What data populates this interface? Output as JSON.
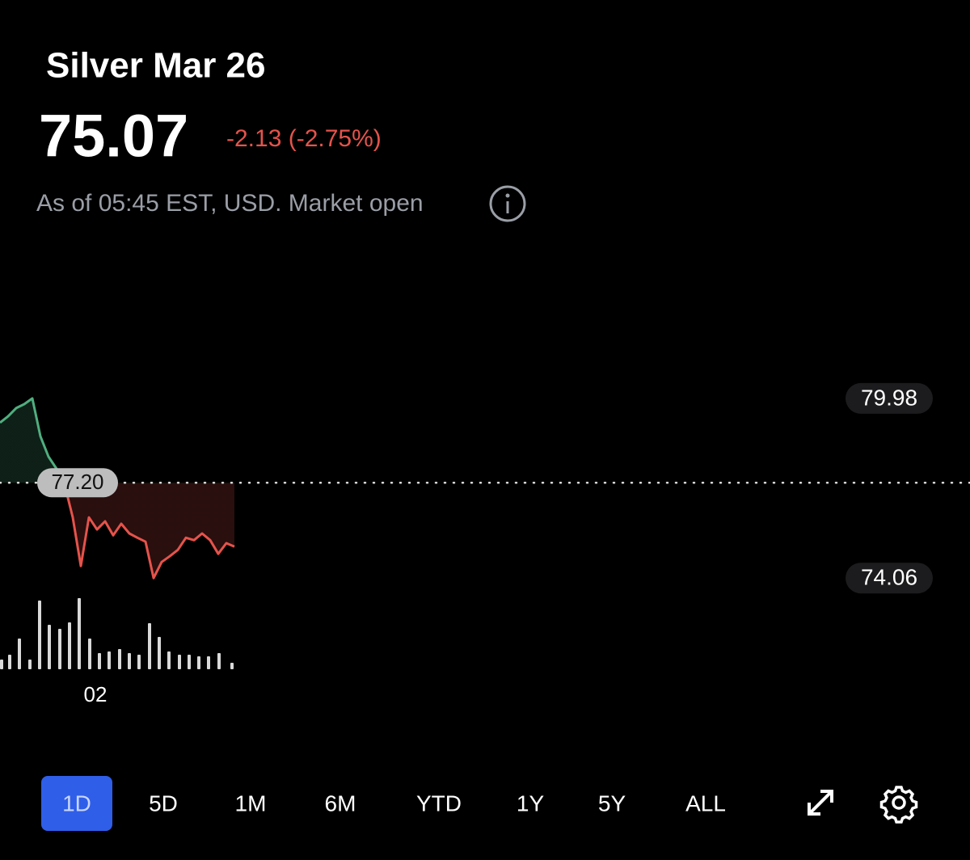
{
  "header": {
    "title": "Silver Mar 26",
    "price": "75.07",
    "change": "-2.13 (-2.75%)",
    "status": "As of 05:45 EST, USD. Market open"
  },
  "chart_data": {
    "type": "line",
    "x": [
      0,
      1,
      2,
      3,
      4,
      5,
      6,
      7,
      8,
      9,
      10,
      11,
      12,
      13,
      14,
      15,
      16,
      17,
      18,
      19,
      20,
      21,
      22,
      23,
      24,
      25,
      26,
      27,
      28,
      29
    ],
    "values": [
      79.18,
      79.39,
      79.66,
      79.79,
      79.98,
      78.73,
      78.06,
      77.66,
      77.13,
      76.06,
      74.46,
      76.06,
      75.66,
      75.93,
      75.47,
      75.85,
      75.53,
      75.39,
      75.26,
      74.06,
      74.59,
      74.78,
      74.99,
      75.39,
      75.31,
      75.53,
      75.31,
      74.86,
      75.21,
      75.1
    ],
    "up_color": "#4fae7f",
    "down_color": "#e5534b",
    "xlim": [
      0,
      120
    ],
    "xticks": [
      {
        "value": 11.8,
        "label": "02"
      }
    ],
    "ylim": [
      73.4,
      82.88
    ],
    "yticks": [
      74.06,
      79.98
    ],
    "reference": {
      "value": 77.2,
      "label": "77.20"
    },
    "volume": {
      "x": [
        0.2,
        1.2,
        2.4,
        3.7,
        4.9,
        6.1,
        7.4,
        8.6,
        9.8,
        11.1,
        12.3,
        13.5,
        14.8,
        16.0,
        17.2,
        18.5,
        19.7,
        20.9,
        22.2,
        23.4,
        24.6,
        25.8,
        27.1,
        28.7
      ],
      "values": [
        12,
        18,
        38,
        12,
        85,
        55,
        50,
        58,
        88,
        38,
        20,
        22,
        25,
        20,
        18,
        57,
        40,
        22,
        18,
        18,
        16,
        16,
        20,
        8
      ],
      "ylim": [
        0,
        100
      ],
      "color": "#d9d9d9"
    }
  },
  "ranges": {
    "options": [
      "1D",
      "5D",
      "1M",
      "6M",
      "YTD",
      "1Y",
      "5Y",
      "ALL"
    ],
    "selected": 0
  }
}
